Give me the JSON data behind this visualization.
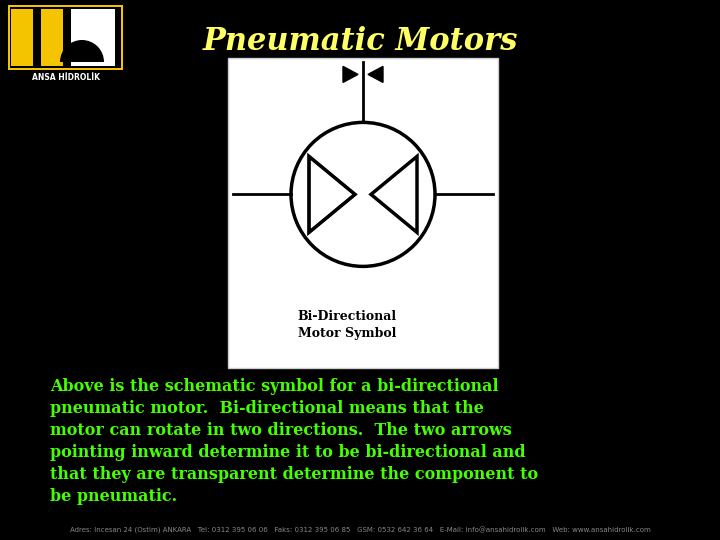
{
  "background_color": "#000000",
  "title": "Pneumatic Motors",
  "title_color": "#ffff66",
  "title_fontsize": 22,
  "body_text_lines": [
    "Above is the schematic symbol for a bi-directional",
    "pneumatic motor.  Bi-directional means that the",
    "motor can rotate in two directions.  The two arrows",
    "pointing inward determine it to be bi-directional and",
    "that they are transparent determine the component to",
    "be pneumatic."
  ],
  "body_text_color": "#44ff00",
  "body_text_fontsize": 11.5,
  "image_box_facecolor": "#ffffff",
  "caption": "Bi-Directional\nMotor Symbol",
  "caption_fontsize": 9,
  "footer_text": "Adres: Incesan 24 (Ostim) ANKARA   Tel: 0312 395 06 06   Faks: 0312 395 06 85   GSM: 0532 642 36 64   E-Mail: info@ansahidrolik.com   Web: www.ansahidrolik.com",
  "footer_color": "#888888",
  "footer_fontsize": 5.0,
  "logo_yellow": "#f5c400",
  "logo_white": "#ffffff",
  "logo_black": "#000000"
}
